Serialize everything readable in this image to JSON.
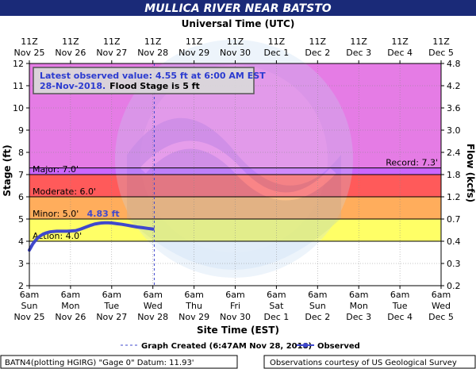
{
  "title": "MULLICA RIVER NEAR BATSTO",
  "top_axis_title": "Universal Time (UTC)",
  "bottom_axis_title": "Site Time (EST)",
  "footer": {
    "left": "BATN4(plotting HGIRG) \"Gage 0\" Datum: 11.93'",
    "right": "Observations courtesy of US Geological Survey"
  },
  "legend": {
    "created": "Graph Created (6:47AM Nov 28, 2018)",
    "observed": "Observed"
  },
  "info_box": {
    "line1_prefix": "Latest observed value: ",
    "line1_value": "4.55 ft at 6:00 AM EST",
    "line2_date": "28-Nov-2018.",
    "line2_flood": "Flood Stage is 5 ft"
  },
  "colors": {
    "record": "#e57ce5",
    "major": "#cc66ff",
    "moderate": "#ff5a5a",
    "minor": "#ffad5c",
    "action": "#ffff66",
    "normal": "#ffffff",
    "observed": "#3f48cc",
    "title_bg": "#1a2a78",
    "info_text": "#2b3bd0"
  },
  "chart_data": {
    "type": "line",
    "ylabel": "Stage (ft)",
    "y2label": "Flow (kcfs)",
    "ylim": [
      2,
      12
    ],
    "y_ticks": [
      "2",
      "3",
      "4",
      "5",
      "6",
      "7",
      "8",
      "9",
      "10",
      "11",
      "12"
    ],
    "flow_ticks": [
      {
        "stage": 2,
        "label": "0.2"
      },
      {
        "stage": 3,
        "label": "0.3"
      },
      {
        "stage": 4,
        "label": "0.4"
      },
      {
        "stage": 5,
        "label": "0.7"
      },
      {
        "stage": 6,
        "label": "1.2"
      },
      {
        "stage": 7,
        "label": "1.8"
      },
      {
        "stage": 8,
        "label": "2.4"
      },
      {
        "stage": 9,
        "label": "3.0"
      },
      {
        "stage": 10,
        "label": "3.6"
      },
      {
        "stage": 11,
        "label": "4.2"
      },
      {
        "stage": 12,
        "label": "4.8"
      }
    ],
    "xlim_hours": [
      0,
      240
    ],
    "bottom_ticks": [
      {
        "h": 0,
        "l1": "6am",
        "l2": "Sun",
        "l3": "Nov 25"
      },
      {
        "h": 24,
        "l1": "6am",
        "l2": "Mon",
        "l3": "Nov 26"
      },
      {
        "h": 48,
        "l1": "6am",
        "l2": "Tue",
        "l3": "Nov 27"
      },
      {
        "h": 72,
        "l1": "6am",
        "l2": "Wed",
        "l3": "Nov 28"
      },
      {
        "h": 96,
        "l1": "6am",
        "l2": "Thu",
        "l3": "Nov 29"
      },
      {
        "h": 120,
        "l1": "6am",
        "l2": "Fri",
        "l3": "Nov 30"
      },
      {
        "h": 144,
        "l1": "6am",
        "l2": "Sat",
        "l3": "Dec 1"
      },
      {
        "h": 168,
        "l1": "6am",
        "l2": "Sun",
        "l3": "Dec 2"
      },
      {
        "h": 192,
        "l1": "6am",
        "l2": "Mon",
        "l3": "Dec 3"
      },
      {
        "h": 216,
        "l1": "6am",
        "l2": "Tue",
        "l3": "Dec 4"
      },
      {
        "h": 240,
        "l1": "6am",
        "l2": "Wed",
        "l3": "Dec 5"
      }
    ],
    "top_ticks": [
      {
        "h": 0,
        "l1": "11Z",
        "l2": "Nov 25"
      },
      {
        "h": 24,
        "l1": "11Z",
        "l2": "Nov 26"
      },
      {
        "h": 48,
        "l1": "11Z",
        "l2": "Nov 27"
      },
      {
        "h": 72,
        "l1": "11Z",
        "l2": "Nov 28"
      },
      {
        "h": 96,
        "l1": "11Z",
        "l2": "Nov 29"
      },
      {
        "h": 120,
        "l1": "11Z",
        "l2": "Nov 30"
      },
      {
        "h": 144,
        "l1": "11Z",
        "l2": "Dec 1"
      },
      {
        "h": 168,
        "l1": "11Z",
        "l2": "Dec 2"
      },
      {
        "h": 192,
        "l1": "11Z",
        "l2": "Dec 3"
      },
      {
        "h": 216,
        "l1": "11Z",
        "l2": "Dec 4"
      },
      {
        "h": 240,
        "l1": "11Z",
        "l2": "Dec 5"
      }
    ],
    "flood_categories": [
      {
        "name": "Action",
        "label": "Action: 4.0'",
        "from": 4.0,
        "to": 5.0
      },
      {
        "name": "Minor",
        "label": "Minor: 5.0'",
        "from": 5.0,
        "to": 6.0
      },
      {
        "name": "Moderate",
        "label": "Moderate: 6.0'",
        "from": 6.0,
        "to": 7.0
      },
      {
        "name": "Major",
        "label": "Major: 7.0'",
        "from": 7.0,
        "to": 7.3
      }
    ],
    "record": {
      "label": "Record: 7.3'",
      "value": 7.3
    },
    "graph_created_hour": 72.8,
    "peak_label": "4.83 ft",
    "observed": {
      "hours": [
        0,
        2,
        4,
        6,
        8,
        10,
        12,
        14,
        16,
        18,
        20,
        22,
        24,
        27,
        30,
        33,
        36,
        38,
        40,
        42,
        44,
        46,
        48,
        51,
        54,
        57,
        60,
        63,
        66,
        69,
        72
      ],
      "stage": [
        3.6,
        3.88,
        4.08,
        4.22,
        4.32,
        4.38,
        4.42,
        4.44,
        4.45,
        4.45,
        4.45,
        4.45,
        4.46,
        4.48,
        4.55,
        4.64,
        4.72,
        4.77,
        4.8,
        4.82,
        4.83,
        4.83,
        4.82,
        4.79,
        4.76,
        4.72,
        4.68,
        4.64,
        4.61,
        4.58,
        4.55
      ]
    }
  }
}
